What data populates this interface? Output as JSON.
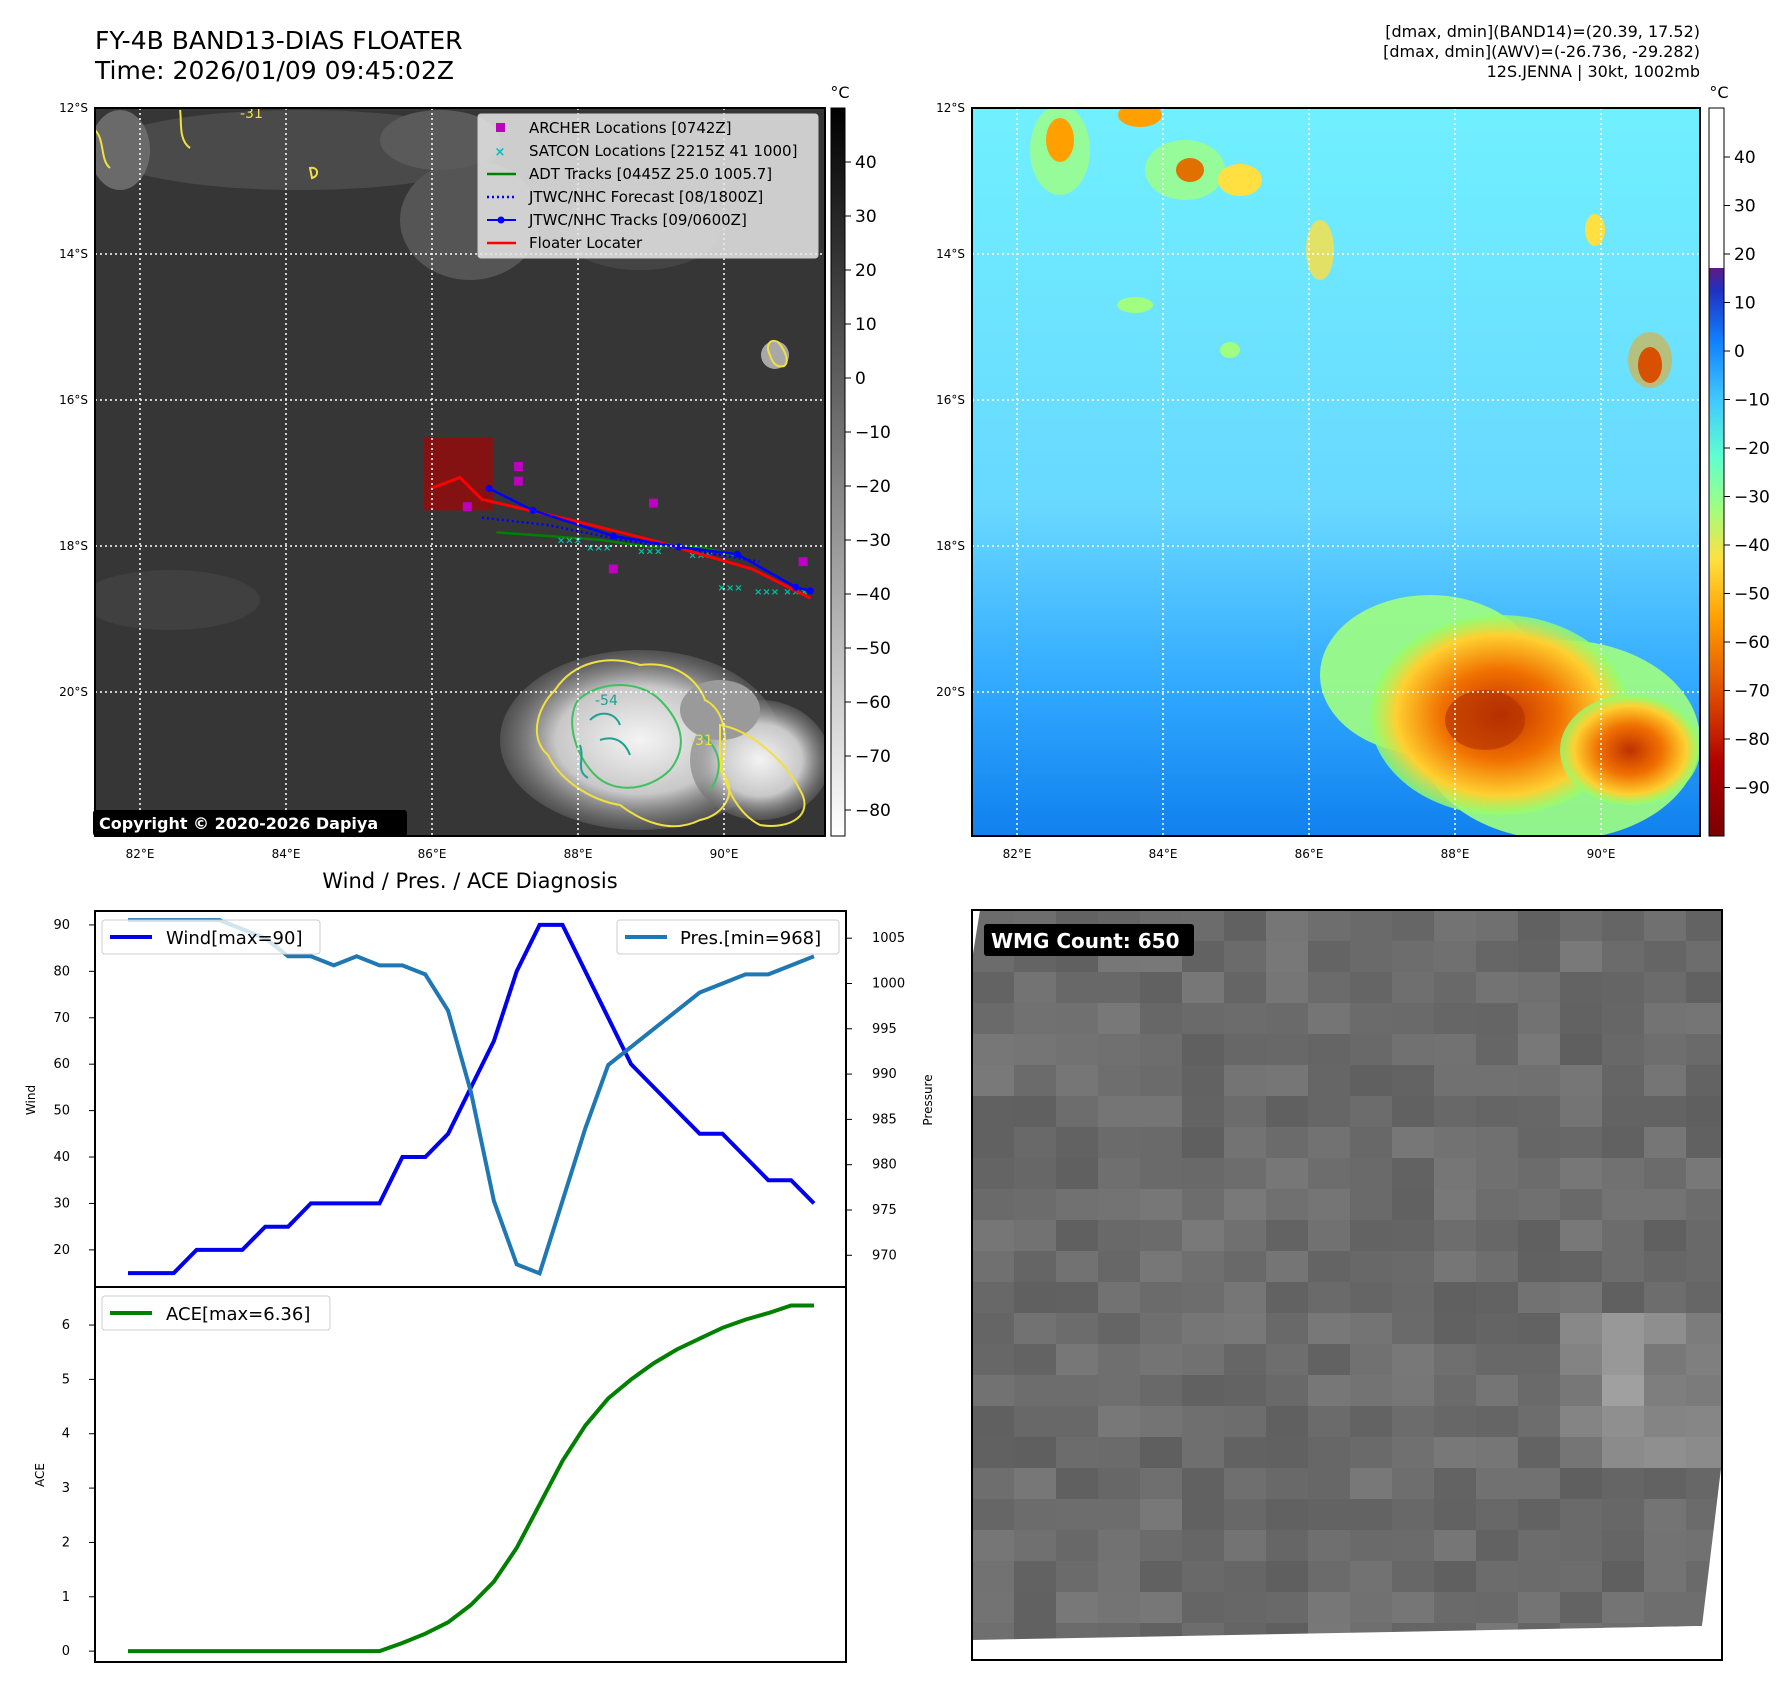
{
  "header": {
    "title": "FY-4B BAND13-DIAS FLOATER",
    "time": "Time: 2026/01/09 09:45:02Z"
  },
  "info": {
    "line1": "[dmax, dmin](BAND14)=(20.39, 17.52)",
    "line2": "[dmax, dmin](AWV)=(-26.736, -29.282)",
    "line3": "12S.JENNA | 30kt, 1002mb"
  },
  "map": {
    "lat_labels": [
      "12°S",
      "14°S",
      "16°S",
      "18°S",
      "20°S"
    ],
    "lon_labels": [
      "82°E",
      "84°E",
      "86°E",
      "88°E",
      "90°E"
    ],
    "copyright": "Copyright © 2020-2026 Dapiya",
    "contour_labels": [
      "-31",
      "-54",
      "-31"
    ],
    "legend": [
      {
        "label": "ARCHER Locations [0742Z]",
        "color": "#c000c0"
      },
      {
        "label": "SATCON Locations [2215Z 41 1000]",
        "color": "#00c0c0"
      },
      {
        "label": "ADT Tracks [0445Z 25.0 1005.7]",
        "color": "#008000"
      },
      {
        "label": "JTWC/NHC Forecast [08/1800Z]",
        "color": "#0000ff"
      },
      {
        "label": "JTWC/NHC Tracks [09/0600Z]",
        "color": "#0000ff"
      },
      {
        "label": "Floater Locater",
        "color": "#ff0000"
      }
    ]
  },
  "colorbars": {
    "unit": "°C",
    "gray_ticks": [
      "40",
      "30",
      "20",
      "10",
      "0",
      "−10",
      "−20",
      "−30",
      "−40",
      "−50",
      "−60",
      "−70",
      "−80"
    ],
    "color_ticks": [
      "40",
      "30",
      "20",
      "10",
      "0",
      "−10",
      "−20",
      "−30",
      "−40",
      "−50",
      "−60",
      "−70",
      "−80",
      "−90"
    ]
  },
  "diagnosis": {
    "title": "Wind / Pres. / ACE Diagnosis",
    "wind_axis_label": "Wind",
    "pressure_axis_label": "Pressure",
    "ace_axis_label": "ACE",
    "wind_legend": "Wind[max=90]",
    "pres_legend": "Pres.[min=968]",
    "ace_legend": "ACE[max=6.36]"
  },
  "wmg": {
    "label": "WMG Count: 650"
  },
  "chart_data": [
    {
      "type": "line",
      "title": "Wind / Pres. / ACE Diagnosis",
      "series": [
        {
          "name": "Wind[max=90]",
          "axis": "Wind",
          "color": "#0000ee",
          "values": [
            15,
            15,
            15,
            20,
            20,
            20,
            25,
            25,
            30,
            30,
            30,
            30,
            40,
            40,
            45,
            55,
            65,
            80,
            90,
            90,
            80,
            70,
            60,
            55,
            50,
            45,
            45,
            40,
            35,
            35,
            30
          ]
        },
        {
          "name": "Pres.[min=968]",
          "axis": "Pressure",
          "color": "#1f77b4",
          "values": [
            1007,
            1007,
            1007,
            1007,
            1007,
            1006,
            1005,
            1003,
            1003,
            1002,
            1003,
            1002,
            1002,
            1001,
            997,
            988,
            976,
            969,
            968,
            976,
            984,
            991,
            993,
            995,
            997,
            999,
            1000,
            1001,
            1001,
            1002,
            1003
          ]
        },
        {
          "name": "ACE[max=6.36]",
          "axis": "ACE",
          "color": "#008000",
          "values": [
            0,
            0,
            0,
            0,
            0,
            0,
            0,
            0,
            0,
            0,
            0,
            0,
            0.15,
            0.32,
            0.53,
            0.85,
            1.28,
            1.9,
            2.7,
            3.5,
            4.15,
            4.65,
            5.0,
            5.3,
            5.55,
            5.75,
            5.95,
            6.1,
            6.22,
            6.36,
            6.36
          ]
        }
      ],
      "wind_ylim": [
        12,
        93
      ],
      "pressure_ylim": [
        966.5,
        1008
      ],
      "ace_ylim": [
        -0.2,
        6.7
      ],
      "wind_ticks": [
        20,
        30,
        40,
        50,
        60,
        70,
        80,
        90
      ],
      "pressure_ticks": [
        970,
        975,
        980,
        985,
        990,
        995,
        1000,
        1005
      ],
      "ace_ticks": [
        0,
        1,
        2,
        3,
        4,
        5,
        6
      ]
    },
    {
      "type": "track-map",
      "title": "FY-4B BAND13-DIAS FLOATER",
      "xlim": [
        81.4,
        91.4
      ],
      "ylim": [
        -21.95,
        -12.0
      ],
      "floater_box": {
        "lon": [
          85.9,
          86.85
        ],
        "lat": [
          -16.5,
          -17.5
        ]
      },
      "archer": [
        [
          87.2,
          -16.9
        ],
        [
          87.2,
          -17.1
        ],
        [
          86.5,
          -17.45
        ],
        [
          89.05,
          -17.4
        ],
        [
          88.5,
          -18.3
        ],
        [
          91.1,
          -18.2
        ]
      ],
      "jtwc_track": [
        [
          86.8,
          -17.2
        ],
        [
          87.4,
          -17.5
        ],
        [
          88.5,
          -17.85
        ],
        [
          89.4,
          -18.0
        ],
        [
          90.2,
          -18.1
        ],
        [
          91.0,
          -18.55
        ],
        [
          91.2,
          -18.6
        ]
      ],
      "jtwc_forecast": [
        [
          86.7,
          -17.6
        ],
        [
          87.6,
          -17.7
        ],
        [
          88.6,
          -17.9
        ],
        [
          89.6,
          -18.05
        ],
        [
          90.5,
          -18.2
        ]
      ],
      "floater_locater": [
        [
          86.0,
          -17.2
        ],
        [
          86.4,
          -17.05
        ],
        [
          86.7,
          -17.35
        ],
        [
          88.0,
          -17.65
        ],
        [
          89.0,
          -17.9
        ],
        [
          90.4,
          -18.3
        ],
        [
          91.2,
          -18.7
        ]
      ],
      "adt": [
        [
          86.9,
          -17.8
        ],
        [
          87.6,
          -17.85
        ],
        [
          88.3,
          -17.9
        ],
        [
          89.0,
          -18.0
        ],
        [
          89.7,
          -18.0
        ],
        [
          90.3,
          -18.15
        ]
      ],
      "satcon": [
        [
          87.9,
          -17.9
        ],
        [
          88.3,
          -18.0
        ],
        [
          89.0,
          -18.05
        ],
        [
          89.7,
          -18.1
        ],
        [
          90.1,
          -18.55
        ],
        [
          90.6,
          -18.6
        ],
        [
          91.0,
          -18.6
        ]
      ]
    }
  ]
}
